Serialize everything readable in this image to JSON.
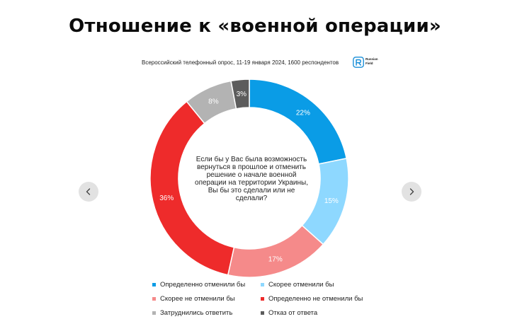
{
  "title": "Отношение к «военной операции»",
  "subtitle": "Всероссийский телефонный опрос, 11-19 января 2024, 1600 респондентов",
  "brand": {
    "name_line1": "Russian",
    "name_line2": "Field",
    "icon": "russian-field-logo",
    "color": "#1a8fd8"
  },
  "navigation": {
    "prev_icon": "chevron-left-icon",
    "next_icon": "chevron-right-icon"
  },
  "chart_data": {
    "type": "donut",
    "title": "Отношение к «военной операции»",
    "center_text": "Если бы у Вас была возможность вернуться в прошлое и отменить решение о начале военной операции на территории Украины, Вы бы это сделали или не сделали?",
    "center_lines": [
      "Если бы у Вас была возможность",
      "вернуться в прошлое и отменить",
      "решение о начале военной",
      "операции на территории Украины,",
      "Вы бы это сделали или не",
      "сделали?"
    ],
    "unit": "%",
    "slices": [
      {
        "label": "Определенно отменили бы",
        "value": 22,
        "color": "#0a9ce6"
      },
      {
        "label": "Скорее отменили бы",
        "value": 15,
        "color": "#8ed8ff"
      },
      {
        "label": "Скорее не отменили бы",
        "value": 17,
        "color": "#f58a8a"
      },
      {
        "label": "Определенно не отменили бы",
        "value": 36,
        "color": "#ee2b2b"
      },
      {
        "label": "Затруднились ответить",
        "value": 8,
        "color": "#b3b3b3"
      },
      {
        "label": "Отказ от ответа",
        "value": 3,
        "color": "#5c5c5c"
      }
    ],
    "legend_position": "bottom"
  }
}
